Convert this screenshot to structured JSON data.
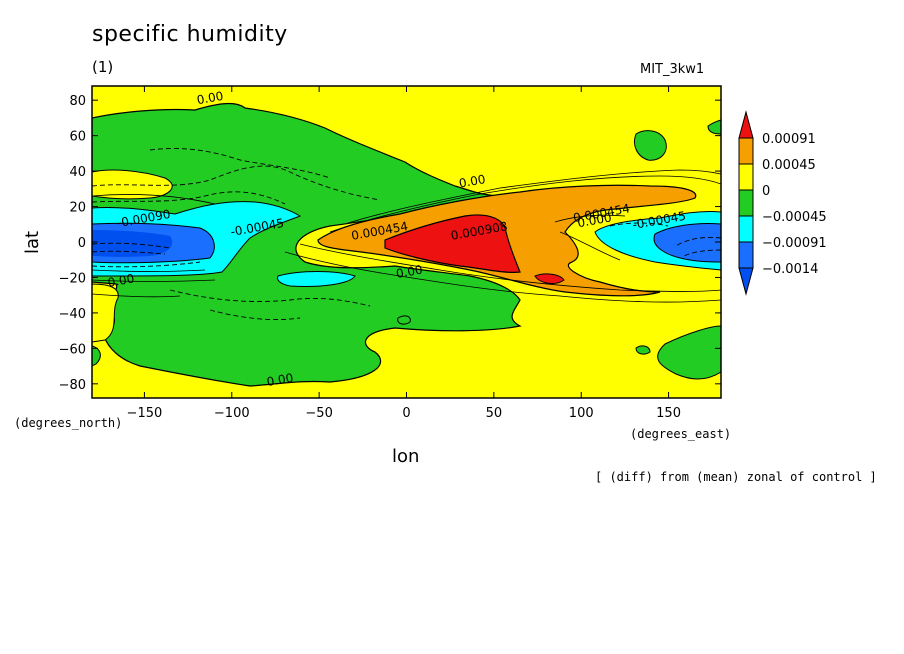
{
  "header": {
    "title": "specific humidity",
    "subtitle": "(1)",
    "run": "MIT_3kw1"
  },
  "units": {
    "left": "(degrees_north)",
    "right": "(degrees_east)"
  },
  "footnote": "[ (diff) from (mean) zonal of control ]",
  "colors": {
    "red": "#ee1111",
    "orange": "#f5a000",
    "yellow": "#ffff00",
    "green": "#22cc22",
    "cyan": "#00ffff",
    "blue": "#1a6fff",
    "darkblue": "#0050f0"
  },
  "chart_data": {
    "type": "heatmap",
    "title": "specific humidity",
    "subtitle": "(1)",
    "xlabel": "lon",
    "ylabel": "lat",
    "xlim": [
      -180,
      180
    ],
    "ylim": [
      -88,
      88
    ],
    "xticks": [
      -150,
      -100,
      -50,
      0,
      50,
      100,
      150
    ],
    "yticks": [
      80,
      60,
      40,
      20,
      0,
      -20,
      -40,
      -60,
      -80
    ],
    "legend": {
      "position": "right",
      "levels": [
        "0.00091",
        "0.00045",
        "0",
        "-0.00045",
        "-0.00091",
        "-0.0014"
      ],
      "colors": [
        "#ee1111",
        "#f5a000",
        "#ffff00",
        "#22cc22",
        "#00ffff",
        "#1a6fff",
        "#0050f0"
      ]
    },
    "contour_labels": [
      {
        "text": "0.00",
        "lon": -112,
        "lat": 79
      },
      {
        "text": "0.00",
        "lon": 38,
        "lat": 32
      },
      {
        "text": "-0.00090",
        "lon": -150,
        "lat": 11
      },
      {
        "text": "-0.00045",
        "lon": -85,
        "lat": 6
      },
      {
        "text": "0.000454",
        "lon": -15,
        "lat": 4
      },
      {
        "text": "0.000908",
        "lon": 42,
        "lat": 4
      },
      {
        "text": "0.000454",
        "lon": 112,
        "lat": 14
      },
      {
        "text": "0.000",
        "lon": 108,
        "lat": 10
      },
      {
        "text": "-0.00045",
        "lon": 145,
        "lat": 10
      },
      {
        "text": "0.00",
        "lon": -163,
        "lat": -24
      },
      {
        "text": "0.00",
        "lon": 2,
        "lat": -19
      },
      {
        "text": "0.00",
        "lon": -72,
        "lat": -80
      }
    ]
  }
}
